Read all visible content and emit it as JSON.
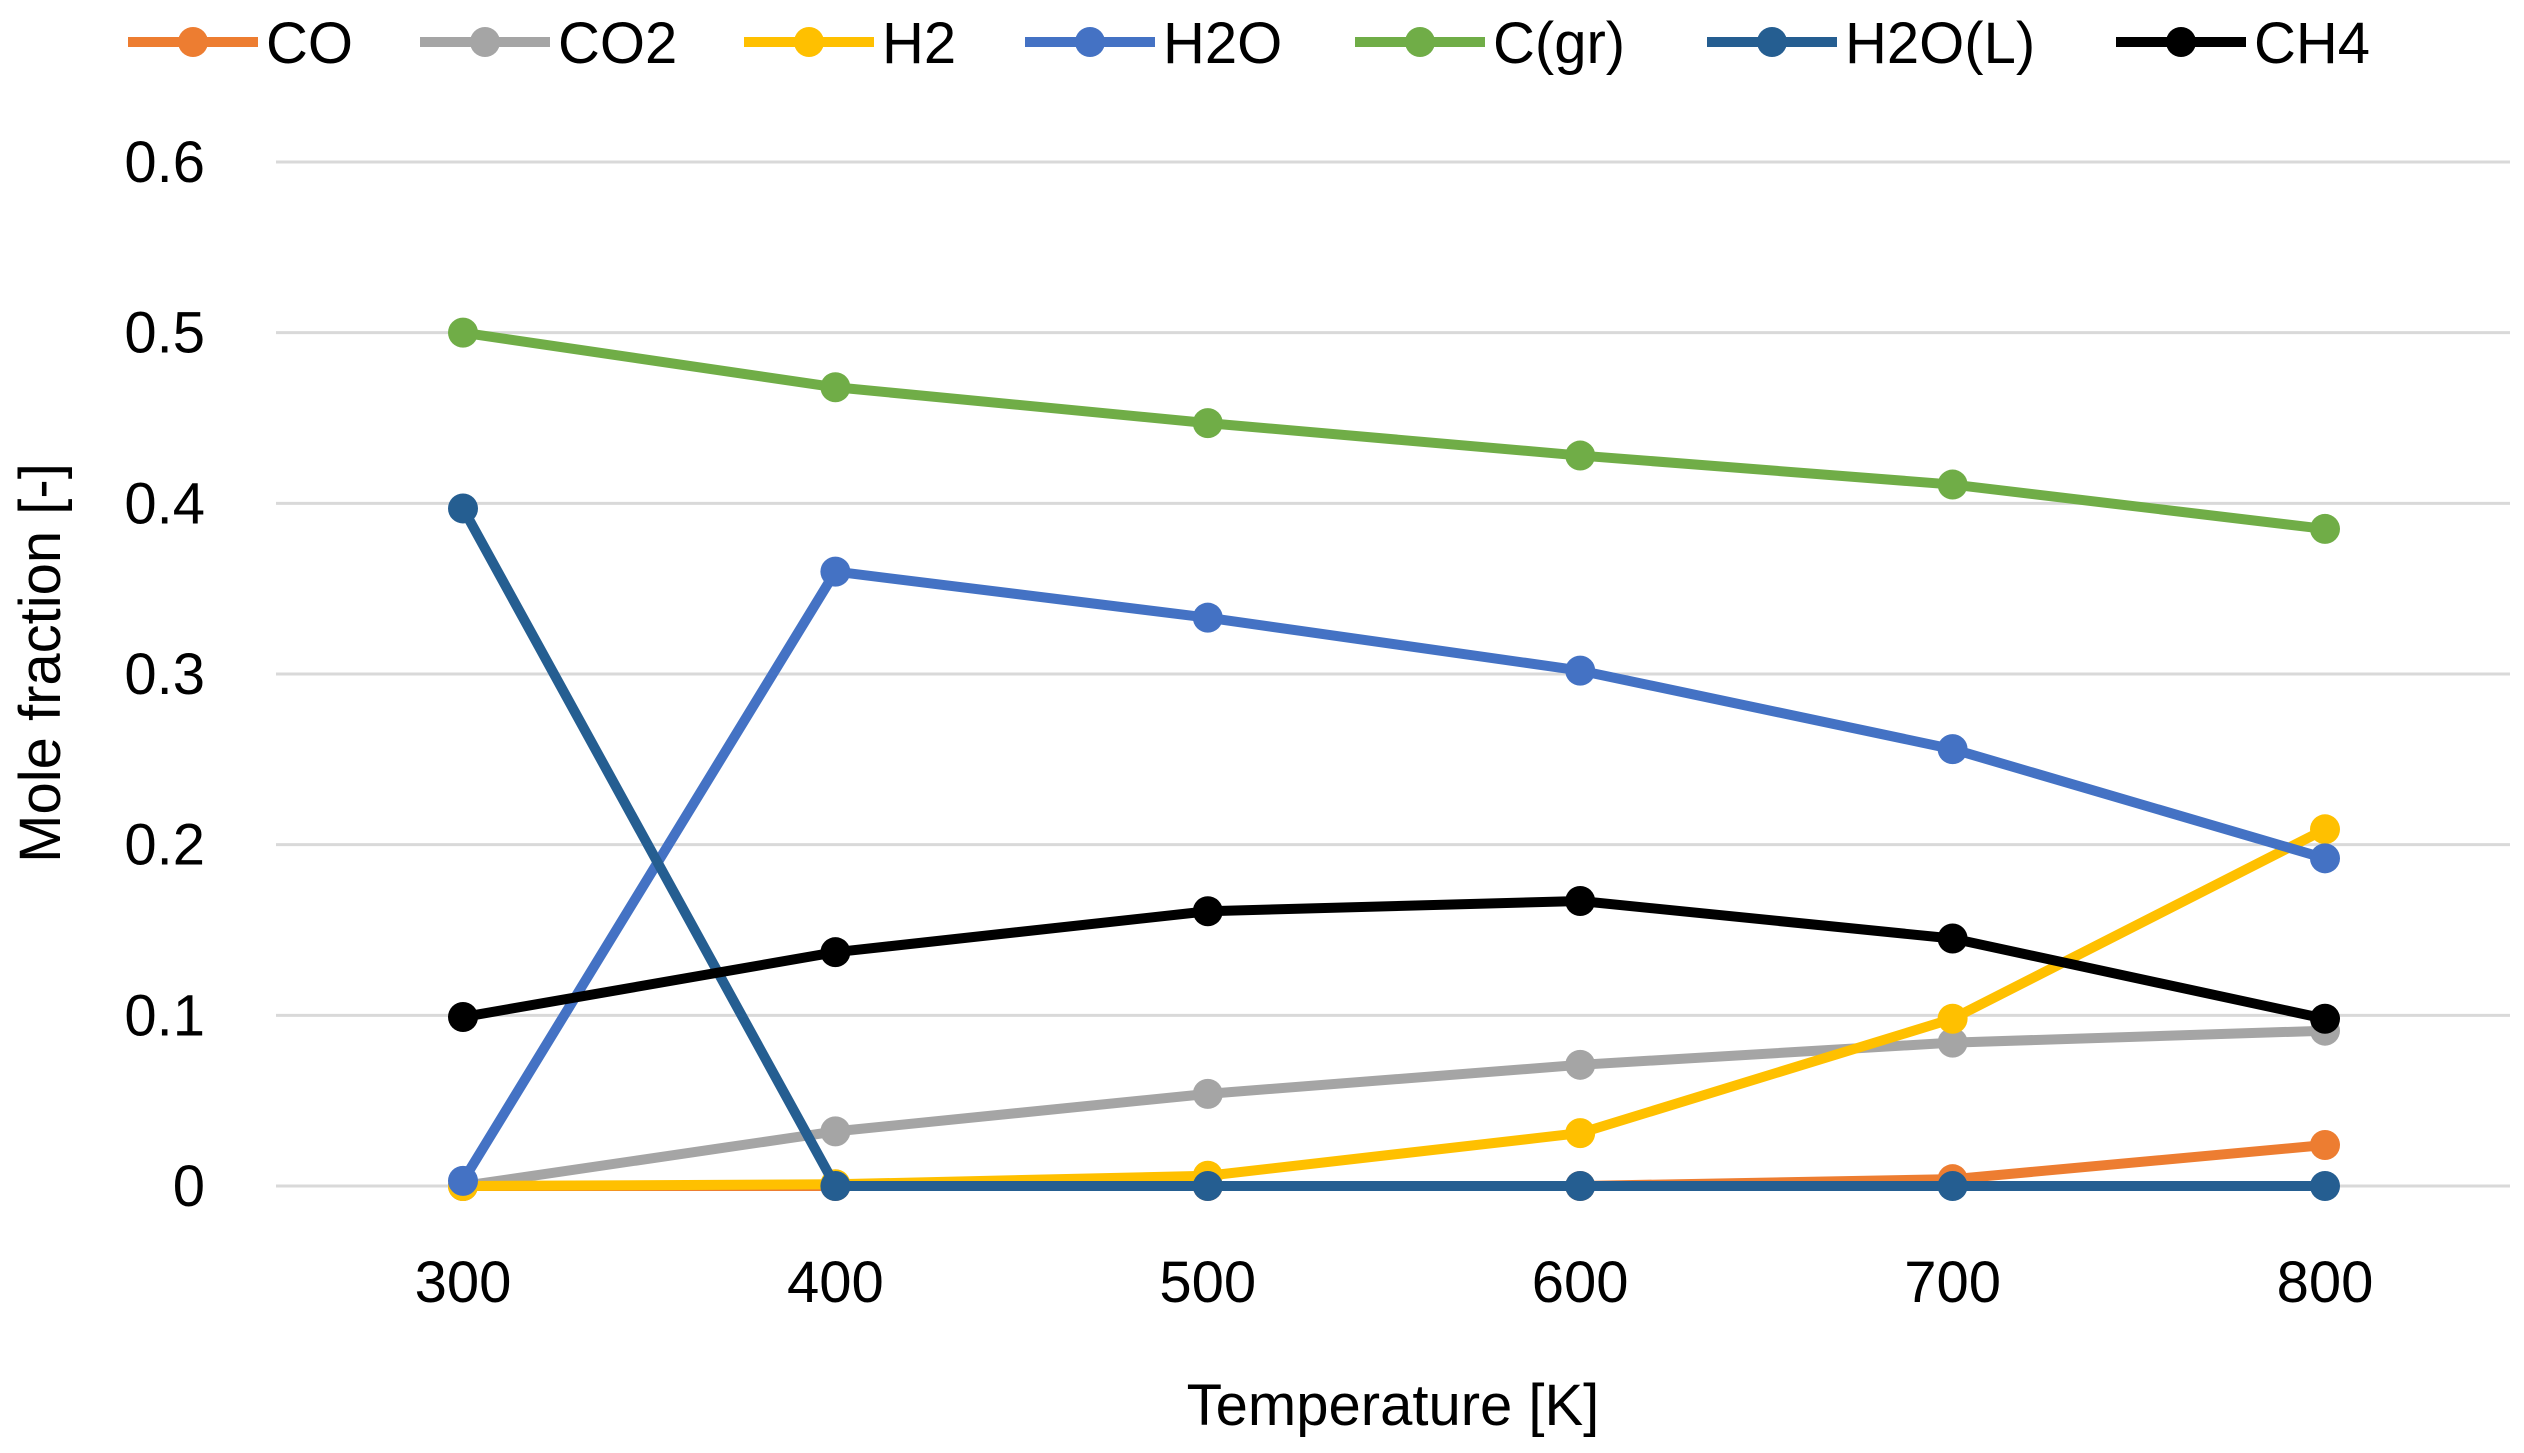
{
  "chart_data": {
    "type": "line",
    "title": "",
    "xlabel": "Temperature [K]",
    "ylabel": "Mole fraction [-]",
    "x": [
      300,
      400,
      500,
      600,
      700,
      800
    ],
    "x_tick_labels": [
      "300",
      "400",
      "500",
      "600",
      "700",
      "800"
    ],
    "ylim": [
      0,
      0.6
    ],
    "y_ticks": [
      0,
      0.1,
      0.2,
      0.3,
      0.4,
      0.5,
      0.6
    ],
    "y_tick_labels": [
      "0",
      "0.1",
      "0.2",
      "0.3",
      "0.4",
      "0.5",
      "0.6"
    ],
    "grid": true,
    "legend_position": "top",
    "series": [
      {
        "name": "CO",
        "color": "#ED7D31",
        "values": [
          0.0,
          0.0,
          0.0,
          0.0,
          0.004,
          0.024
        ]
      },
      {
        "name": "CO2",
        "color": "#A5A5A5",
        "values": [
          0.0,
          0.032,
          0.054,
          0.071,
          0.084,
          0.091
        ]
      },
      {
        "name": "H2",
        "color": "#FFC000",
        "values": [
          0.0,
          0.001,
          0.006,
          0.031,
          0.098,
          0.209
        ]
      },
      {
        "name": "H2O",
        "color": "#4472C4",
        "values": [
          0.003,
          0.36,
          0.333,
          0.302,
          0.256,
          0.192
        ]
      },
      {
        "name": "C(gr)",
        "color": "#70AD47",
        "values": [
          0.5,
          0.468,
          0.447,
          0.428,
          0.411,
          0.385
        ]
      },
      {
        "name": "H2O(L)",
        "color": "#255E91",
        "values": [
          0.397,
          0.0,
          0.0,
          0.0,
          0.0,
          0.0
        ]
      },
      {
        "name": "CH4",
        "color": "#000000",
        "values": [
          0.099,
          0.137,
          0.161,
          0.167,
          0.145,
          0.098
        ]
      }
    ]
  }
}
